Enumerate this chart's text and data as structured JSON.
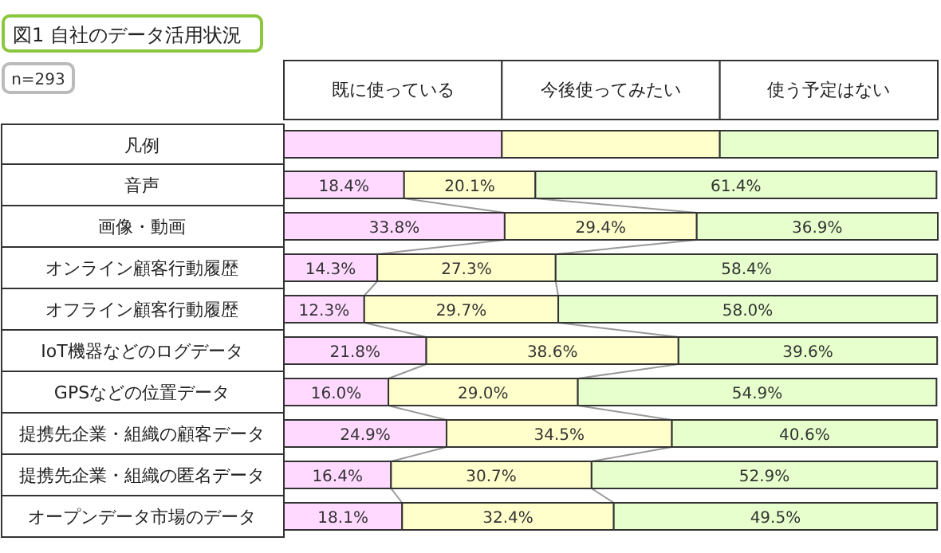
{
  "chart_data": {
    "type": "bar",
    "orientation": "horizontal",
    "stacked": true,
    "title": "図1 自社のデータ活用状況",
    "annotations": [
      "n=293"
    ],
    "legend": "top",
    "legend_title": "凡例",
    "categories": [
      "音声",
      "画像・動画",
      "オンライン顧客行動履歴",
      "オフライン顧客行動履歴",
      "IoT機器などのログデータ",
      "GPSなどの位置データ",
      "提携先企業・組織の顧客データ",
      "提携先企業・組織の匿名データ",
      "オープンデータ市場のデータ"
    ],
    "series": [
      {
        "name": "既に使っている",
        "color": "#ffd9ff",
        "values": [
          18.4,
          33.8,
          14.3,
          12.3,
          21.8,
          16.0,
          24.9,
          16.4,
          18.1
        ],
        "value_labels": [
          "18.4%",
          "33.8%",
          "14.3%",
          "12.3%",
          "21.8%",
          "16.0%",
          "24.9%",
          "16.4%",
          "18.1%"
        ]
      },
      {
        "name": "今後使ってみたい",
        "color": "#ffffcc",
        "values": [
          20.1,
          29.4,
          27.3,
          29.7,
          38.6,
          29.0,
          34.5,
          30.7,
          32.4
        ],
        "value_labels": [
          "20.1%",
          "29.4%",
          "27.3%",
          "29.7%",
          "38.6%",
          "29.0%",
          "34.5%",
          "30.7%",
          "32.4%"
        ]
      },
      {
        "name": "使う予定はない",
        "color": "#e6ffcc",
        "values": [
          61.4,
          36.9,
          58.4,
          58.0,
          39.6,
          54.9,
          40.6,
          52.9,
          49.5
        ],
        "value_labels": [
          "61.4%",
          "36.9%",
          "58.4%",
          "58.0%",
          "39.6%",
          "54.9%",
          "40.6%",
          "52.9%",
          "49.5%"
        ]
      }
    ]
  }
}
